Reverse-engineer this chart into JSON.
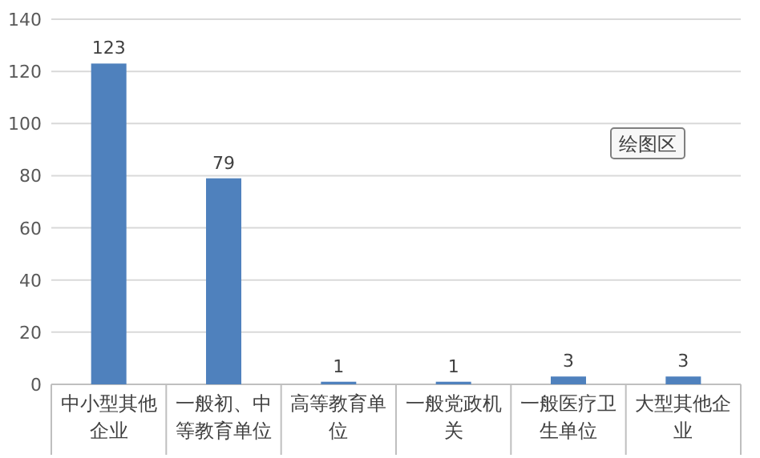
{
  "chart_data": {
    "type": "bar",
    "categories": [
      "中小型其他企业",
      "一般初、中等教育单位",
      "高等教育单位",
      "一般党政机关",
      "一般医疗卫生单位",
      "大型其他企业"
    ],
    "values": [
      123,
      79,
      1,
      1,
      3,
      3
    ],
    "color": "#4f81bd",
    "ylim": [
      0,
      140
    ],
    "yticks": [
      0,
      20,
      40,
      60,
      80,
      100,
      120,
      140
    ],
    "grid": "y",
    "data_labels": true,
    "annotations": [
      "绘图区"
    ]
  }
}
